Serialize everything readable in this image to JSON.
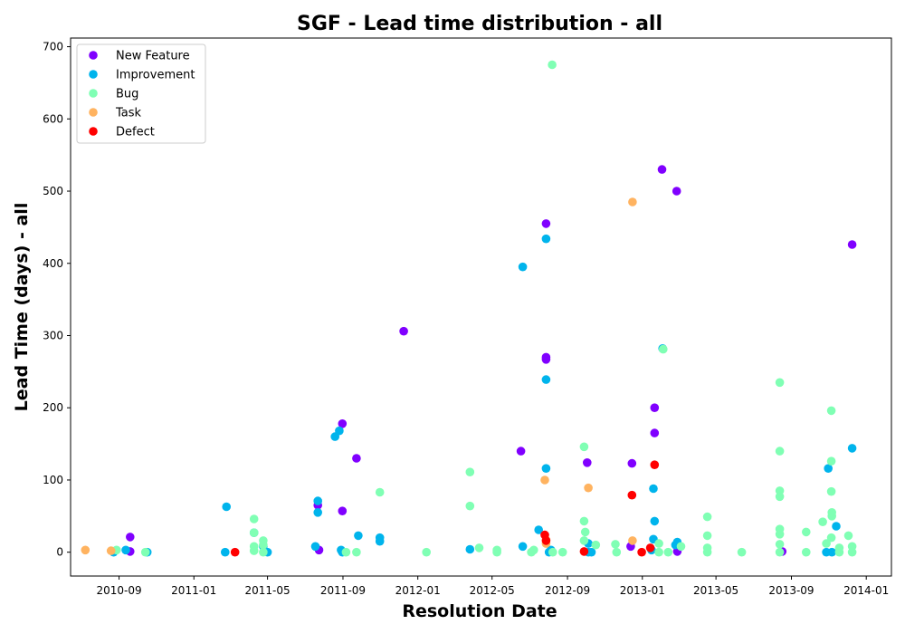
{
  "chart_data": {
    "type": "scatter",
    "title": "SGF - Lead time distribution - all",
    "xlabel": "Resolution Date",
    "ylabel": "Lead Time (days) - all",
    "xlim": [
      "2010-06-14",
      "2014-02-11"
    ],
    "ylim": [
      -33,
      712
    ],
    "x_ticks": [
      {
        "date": "2010-09-01",
        "label": "2010-09"
      },
      {
        "date": "2011-01-01",
        "label": "2011-01"
      },
      {
        "date": "2011-05-01",
        "label": "2011-05"
      },
      {
        "date": "2011-09-01",
        "label": "2011-09"
      },
      {
        "date": "2012-01-01",
        "label": "2012-01"
      },
      {
        "date": "2012-05-01",
        "label": "2012-05"
      },
      {
        "date": "2012-09-01",
        "label": "2012-09"
      },
      {
        "date": "2013-01-01",
        "label": "2013-01"
      },
      {
        "date": "2013-05-01",
        "label": "2013-05"
      },
      {
        "date": "2013-09-01",
        "label": "2013-09"
      },
      {
        "date": "2014-01-01",
        "label": "2014-01"
      }
    ],
    "y_ticks": [
      0,
      100,
      200,
      300,
      400,
      500,
      600,
      700
    ],
    "grid": false,
    "legend_position": "top-left",
    "series": [
      {
        "name": "New Feature",
        "color": "#8000ff",
        "points": [
          [
            "2010-09-19",
            21
          ],
          [
            "2010-09-19",
            1
          ],
          [
            "2011-07-22",
            65
          ],
          [
            "2011-07-24",
            3
          ],
          [
            "2011-08-31",
            178
          ],
          [
            "2011-08-31",
            57
          ],
          [
            "2011-09-23",
            130
          ],
          [
            "2011-12-09",
            306
          ],
          [
            "2012-06-17",
            140
          ],
          [
            "2012-07-28",
            455
          ],
          [
            "2012-07-28",
            270
          ],
          [
            "2012-07-28",
            267
          ],
          [
            "2012-10-03",
            124
          ],
          [
            "2012-12-15",
            123
          ],
          [
            "2012-12-13",
            8
          ],
          [
            "2013-01-21",
            200
          ],
          [
            "2013-01-21",
            165
          ],
          [
            "2013-02-02",
            530
          ],
          [
            "2013-02-26",
            500
          ],
          [
            "2013-02-27",
            1
          ],
          [
            "2013-08-17",
            1
          ],
          [
            "2013-12-09",
            426
          ]
        ]
      },
      {
        "name": "Improvement",
        "color": "#00b4ec",
        "points": [
          [
            "2010-08-23",
            0
          ],
          [
            "2010-09-12",
            3
          ],
          [
            "2010-10-17",
            0
          ],
          [
            "2011-02-23",
            63
          ],
          [
            "2011-02-21",
            0
          ],
          [
            "2011-04-09",
            27
          ],
          [
            "2011-04-24",
            8
          ],
          [
            "2011-05-01",
            0
          ],
          [
            "2011-07-18",
            8
          ],
          [
            "2011-07-22",
            71
          ],
          [
            "2011-07-22",
            55
          ],
          [
            "2011-08-19",
            160
          ],
          [
            "2011-08-26",
            168
          ],
          [
            "2011-08-29",
            3
          ],
          [
            "2011-08-31",
            0
          ],
          [
            "2011-09-26",
            23
          ],
          [
            "2011-10-31",
            20
          ],
          [
            "2011-10-31",
            15
          ],
          [
            "2012-03-26",
            4
          ],
          [
            "2012-06-20",
            395
          ],
          [
            "2012-06-20",
            8
          ],
          [
            "2012-07-16",
            31
          ],
          [
            "2012-07-28",
            434
          ],
          [
            "2012-07-28",
            239
          ],
          [
            "2012-07-28",
            116
          ],
          [
            "2012-08-02",
            0
          ],
          [
            "2012-08-05",
            3
          ],
          [
            "2012-10-05",
            12
          ],
          [
            "2012-10-05",
            0
          ],
          [
            "2012-10-10",
            0
          ],
          [
            "2013-01-19",
            88
          ],
          [
            "2013-01-19",
            18
          ],
          [
            "2013-01-21",
            43
          ],
          [
            "2013-01-16",
            3
          ],
          [
            "2013-02-03",
            282
          ],
          [
            "2013-02-24",
            10
          ],
          [
            "2013-02-27",
            14
          ],
          [
            "2013-10-28",
            0
          ],
          [
            "2013-10-31",
            116
          ],
          [
            "2013-11-13",
            36
          ],
          [
            "2013-12-09",
            144
          ],
          [
            "2013-11-06",
            0
          ]
        ]
      },
      {
        "name": "Bug",
        "color": "#80ffb4",
        "points": [
          [
            "2010-08-28",
            3
          ],
          [
            "2010-10-14",
            0
          ],
          [
            "2011-04-09",
            46
          ],
          [
            "2011-04-09",
            27
          ],
          [
            "2011-04-09",
            8
          ],
          [
            "2011-04-09",
            2
          ],
          [
            "2011-04-24",
            16
          ],
          [
            "2011-04-24",
            10
          ],
          [
            "2011-04-24",
            0
          ],
          [
            "2011-09-06",
            0
          ],
          [
            "2011-09-23",
            0
          ],
          [
            "2011-10-31",
            83
          ],
          [
            "2012-01-15",
            0
          ],
          [
            "2012-03-26",
            111
          ],
          [
            "2012-03-26",
            64
          ],
          [
            "2012-04-10",
            6
          ],
          [
            "2012-05-09",
            3
          ],
          [
            "2012-05-09",
            0
          ],
          [
            "2012-07-04",
            0
          ],
          [
            "2012-07-08",
            3
          ],
          [
            "2012-08-07",
            675
          ],
          [
            "2012-08-08",
            0
          ],
          [
            "2012-08-24",
            0
          ],
          [
            "2012-09-28",
            146
          ],
          [
            "2012-09-28",
            43
          ],
          [
            "2012-09-30",
            28
          ],
          [
            "2012-09-28",
            16
          ],
          [
            "2012-10-17",
            10
          ],
          [
            "2012-11-18",
            11
          ],
          [
            "2012-11-20",
            0
          ],
          [
            "2013-01-28",
            12
          ],
          [
            "2013-01-28",
            0
          ],
          [
            "2013-02-04",
            281
          ],
          [
            "2013-02-12",
            0
          ],
          [
            "2013-03-05",
            8
          ],
          [
            "2013-04-17",
            49
          ],
          [
            "2013-04-17",
            23
          ],
          [
            "2013-04-17",
            6
          ],
          [
            "2013-04-17",
            0
          ],
          [
            "2013-06-12",
            0
          ],
          [
            "2013-08-13",
            235
          ],
          [
            "2013-08-13",
            140
          ],
          [
            "2013-08-13",
            85
          ],
          [
            "2013-08-13",
            77
          ],
          [
            "2013-08-13",
            32
          ],
          [
            "2013-08-13",
            25
          ],
          [
            "2013-08-13",
            11
          ],
          [
            "2013-08-13",
            0
          ],
          [
            "2013-09-25",
            28
          ],
          [
            "2013-09-25",
            0
          ],
          [
            "2013-10-22",
            42
          ],
          [
            "2013-10-28",
            12
          ],
          [
            "2013-11-05",
            196
          ],
          [
            "2013-11-05",
            126
          ],
          [
            "2013-11-05",
            84
          ],
          [
            "2013-11-06",
            55
          ],
          [
            "2013-11-06",
            50
          ],
          [
            "2013-11-05",
            20
          ],
          [
            "2013-11-18",
            6
          ],
          [
            "2013-11-18",
            0
          ],
          [
            "2013-12-03",
            23
          ],
          [
            "2013-12-09",
            8
          ],
          [
            "2013-12-09",
            0
          ]
        ]
      },
      {
        "name": "Task",
        "color": "#ffb360",
        "points": [
          [
            "2010-07-08",
            3
          ],
          [
            "2010-08-19",
            2
          ],
          [
            "2012-07-26",
            100
          ],
          [
            "2012-07-28",
            17
          ],
          [
            "2012-07-28",
            12
          ],
          [
            "2012-10-05",
            89
          ],
          [
            "2012-12-16",
            485
          ],
          [
            "2012-12-16",
            16
          ]
        ]
      },
      {
        "name": "Defect",
        "color": "#ff0000",
        "points": [
          [
            "2011-03-09",
            0
          ],
          [
            "2012-07-26",
            24
          ],
          [
            "2012-07-28",
            16
          ],
          [
            "2012-09-28",
            1
          ],
          [
            "2012-12-15",
            79
          ],
          [
            "2012-12-31",
            0
          ],
          [
            "2013-01-14",
            6
          ],
          [
            "2013-01-21",
            121
          ]
        ]
      }
    ]
  }
}
